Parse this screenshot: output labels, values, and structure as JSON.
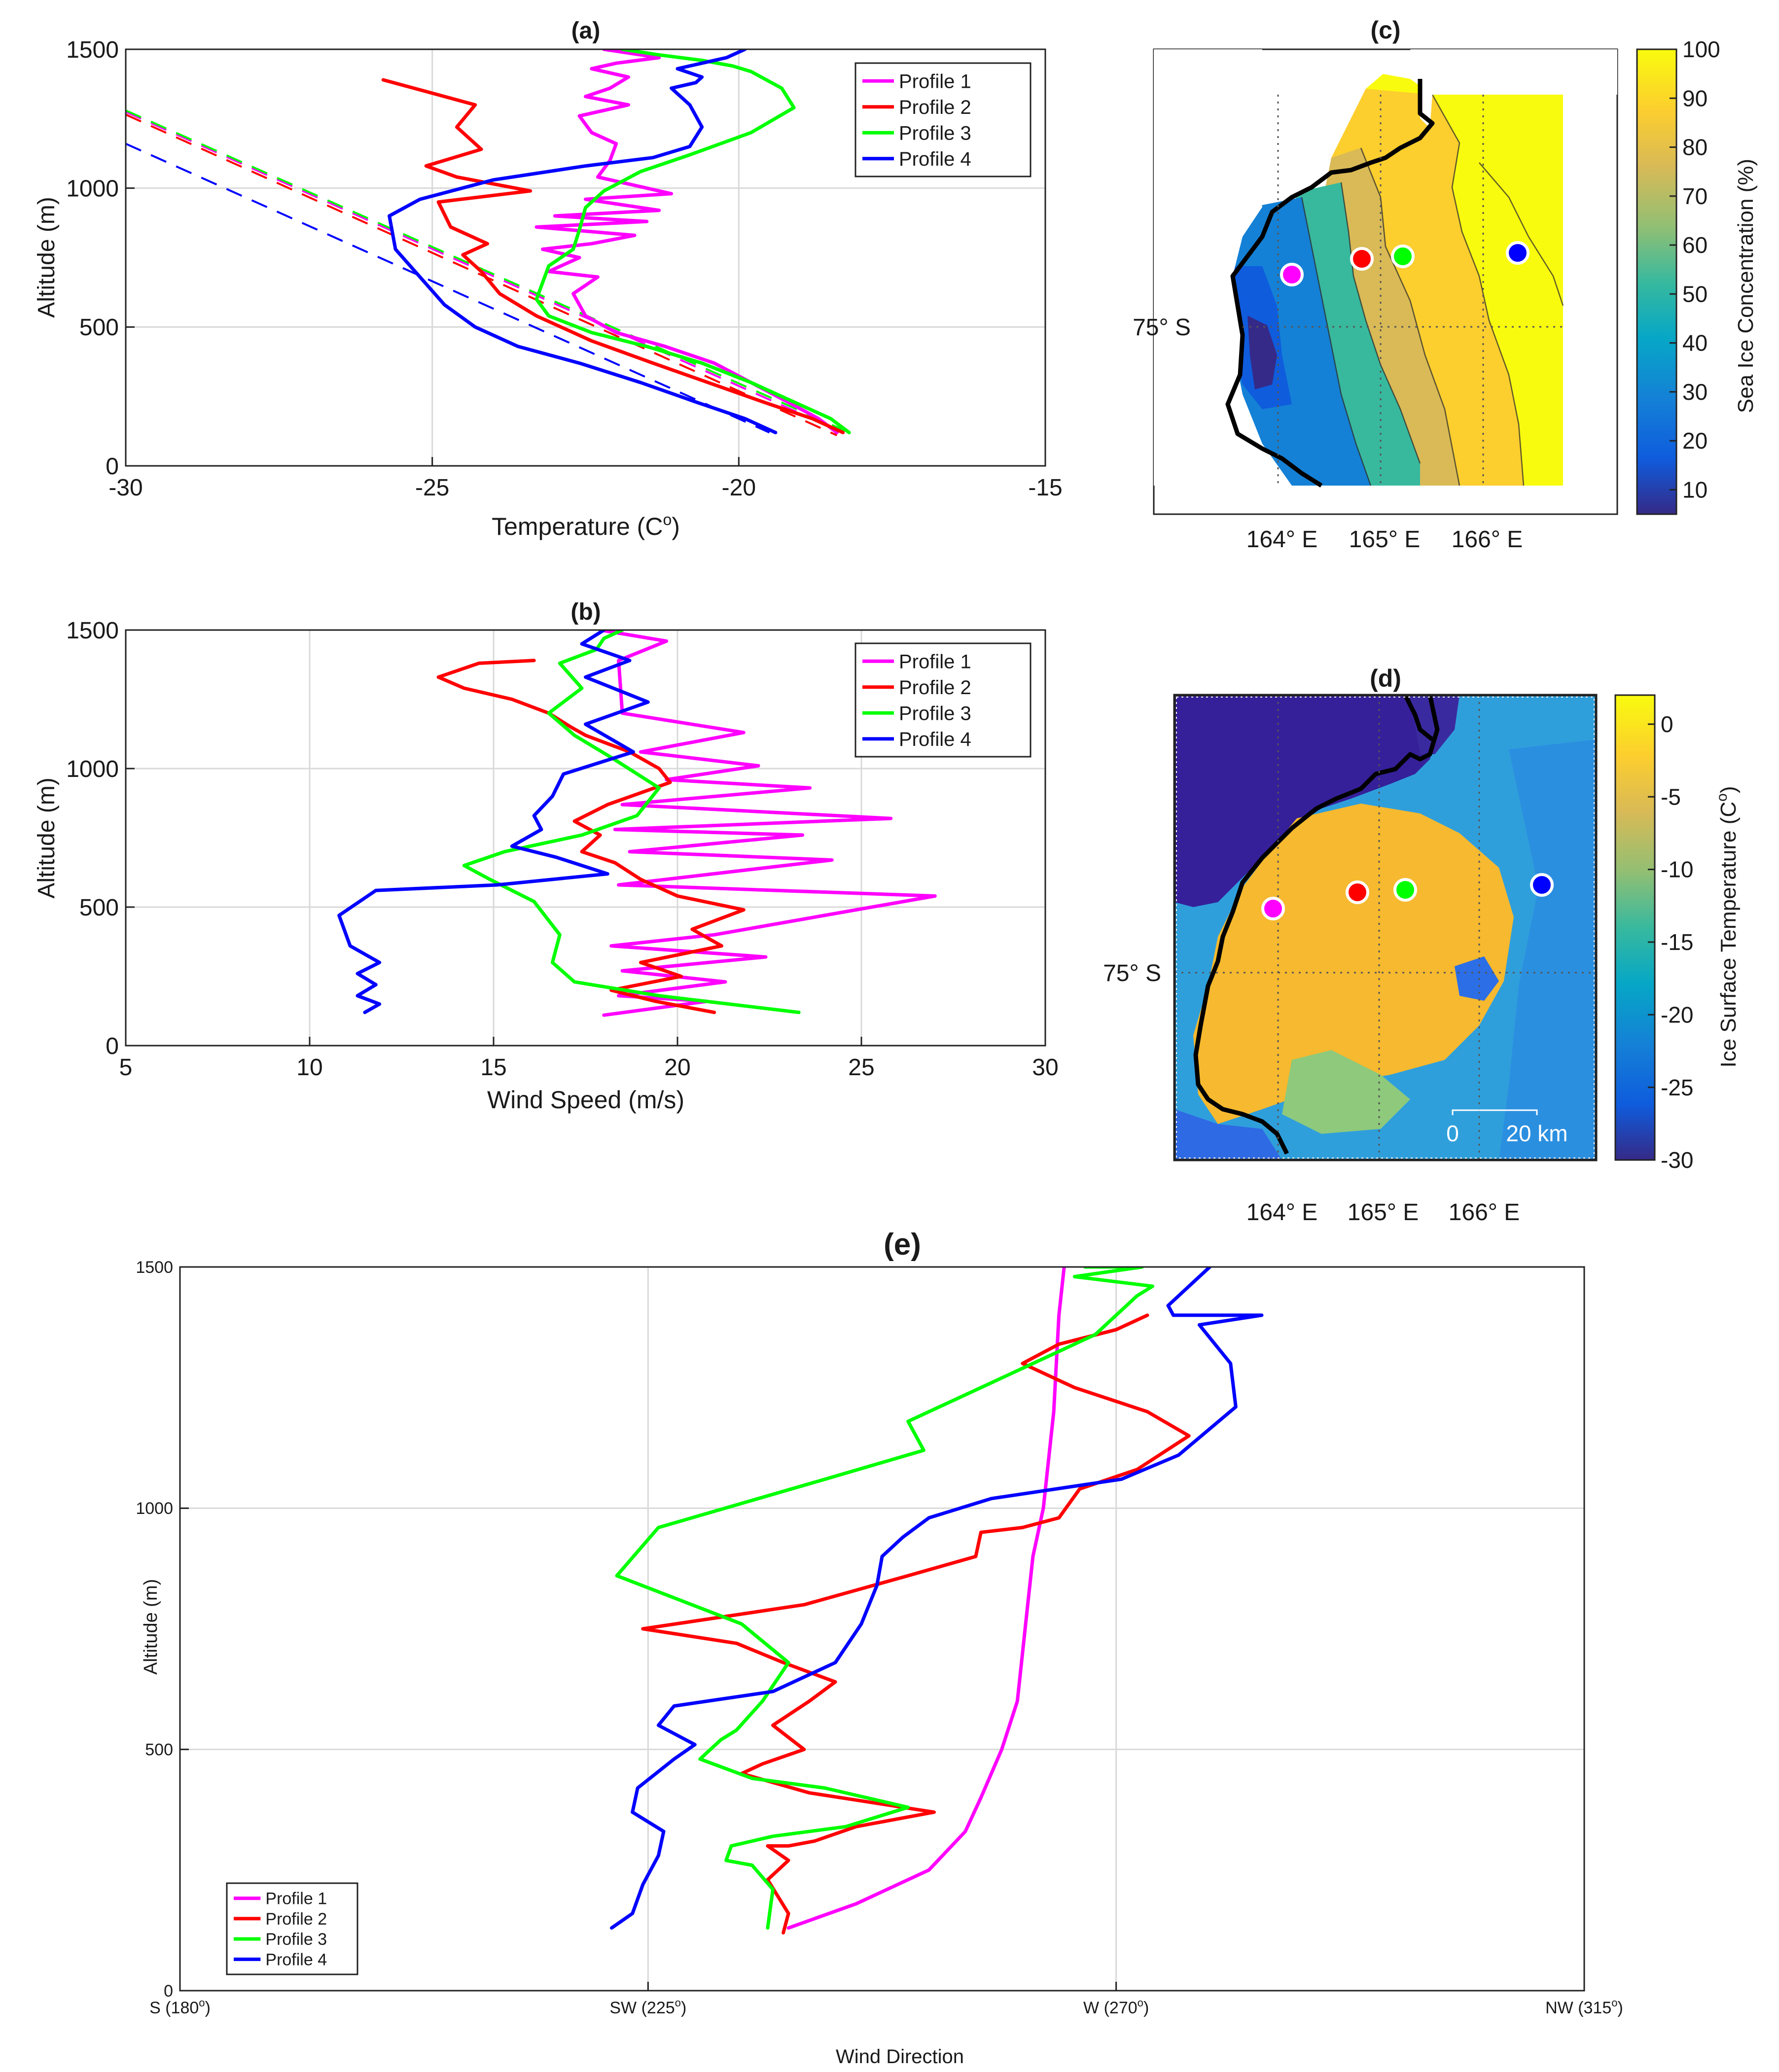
{
  "figure": {
    "series_colors": {
      "Profile 1": "#ff00ff",
      "Profile 2": "#ff0000",
      "Profile 3": "#00ff00",
      "Profile 4": "#0000ff"
    }
  },
  "chart_data": [
    {
      "id": "a",
      "type": "line",
      "title": "(a)",
      "xlabel": "Temperature (C",
      "xlabel_sup": "o",
      "xlabel_tail": ")",
      "ylabel": "Altitude (m)",
      "xlim": [
        -30,
        -15
      ],
      "ylim": [
        0,
        1500
      ],
      "xticks": [
        -30,
        -25,
        -20,
        -15
      ],
      "xtick_labels": [
        "-30",
        "-25",
        "-20",
        "-15"
      ],
      "yticks": [
        0,
        500,
        1000,
        1500
      ],
      "ytick_labels": [
        "0",
        "500",
        "1000",
        "1500"
      ],
      "legend": [
        "Profile 1",
        "Profile 2",
        "Profile 3",
        "Profile 4"
      ],
      "legend_position": "top-right",
      "series": [
        {
          "name": "Profile 1",
          "x": [
            -18.4,
            -18.7,
            -19.2,
            -19.8,
            -20.4,
            -21.2,
            -22.0,
            -22.5,
            -22.7,
            -22.3,
            -23.1,
            -22.6,
            -23.2,
            -22.4,
            -21.7,
            -23.3,
            -21.5,
            -23.0,
            -21.3,
            -22.5,
            -21.1,
            -22.3,
            -22.1,
            -22.0,
            -22.4,
            -22.6,
            -21.8,
            -22.5,
            -22.1,
            -21.8,
            -22.4,
            -22.0,
            -21.3,
            -22.2
          ],
          "y": [
            120,
            170,
            230,
            300,
            370,
            430,
            480,
            540,
            620,
            680,
            700,
            750,
            780,
            800,
            830,
            860,
            880,
            900,
            920,
            960,
            980,
            1040,
            1100,
            1160,
            1200,
            1260,
            1300,
            1330,
            1360,
            1400,
            1430,
            1450,
            1470,
            1500
          ]
        },
        {
          "name": "Profile 2",
          "x": [
            -18.3,
            -18.8,
            -19.6,
            -20.5,
            -21.4,
            -22.4,
            -23.3,
            -23.9,
            -24.2,
            -24.5,
            -24.1,
            -24.7,
            -24.9,
            -23.4,
            -24.6,
            -25.1,
            -24.2,
            -24.6,
            -24.3,
            -25.8
          ],
          "y": [
            120,
            170,
            230,
            300,
            370,
            450,
            540,
            620,
            700,
            760,
            800,
            860,
            950,
            990,
            1040,
            1080,
            1140,
            1220,
            1300,
            1390
          ]
        },
        {
          "name": "Profile 3",
          "x": [
            -18.2,
            -18.5,
            -19.1,
            -19.8,
            -20.6,
            -21.5,
            -22.4,
            -23.1,
            -23.3,
            -23.2,
            -23.1,
            -22.7,
            -22.6,
            -22.5,
            -22.2,
            -21.6,
            -20.8,
            -19.8,
            -19.1,
            -19.3,
            -19.8,
            -20.1,
            -20.6,
            -21.3,
            -21.9
          ],
          "y": [
            120,
            170,
            230,
            300,
            370,
            430,
            480,
            540,
            600,
            660,
            720,
            780,
            850,
            930,
            990,
            1060,
            1120,
            1200,
            1290,
            1360,
            1420,
            1440,
            1460,
            1480,
            1500
          ]
        },
        {
          "name": "Profile 4",
          "x": [
            -19.4,
            -19.9,
            -20.7,
            -21.6,
            -22.6,
            -23.6,
            -24.3,
            -24.8,
            -25.2,
            -25.6,
            -25.7,
            -25.2,
            -24.0,
            -22.5,
            -21.4,
            -20.8,
            -20.6,
            -20.8,
            -21.1,
            -20.7,
            -20.6,
            -21.0,
            -20.2,
            -19.9
          ],
          "y": [
            120,
            170,
            230,
            300,
            370,
            430,
            500,
            580,
            680,
            780,
            900,
            960,
            1030,
            1080,
            1110,
            1150,
            1220,
            1300,
            1360,
            1380,
            1400,
            1430,
            1470,
            1500
          ]
        }
      ],
      "dashed_lines": [
        {
          "name": "Profile 1",
          "x": [
            -30,
            -18.3
          ],
          "y": [
            1275,
            120
          ]
        },
        {
          "name": "Profile 2",
          "x": [
            -30,
            -18.4
          ],
          "y": [
            1265,
            110
          ]
        },
        {
          "name": "Profile 3",
          "x": [
            -30,
            -18.2
          ],
          "y": [
            1280,
            120
          ]
        },
        {
          "name": "Profile 4",
          "x": [
            -30,
            -19.5
          ],
          "y": [
            1160,
            120
          ]
        }
      ]
    },
    {
      "id": "b",
      "type": "line",
      "title": "(b)",
      "xlabel": "Wind Speed (m/s)",
      "ylabel": "Altitude (m)",
      "xlim": [
        5,
        30
      ],
      "ylim": [
        0,
        1500
      ],
      "xticks": [
        5,
        10,
        15,
        20,
        25,
        30
      ],
      "xtick_labels": [
        "5",
        "10",
        "15",
        "20",
        "25",
        "30"
      ],
      "yticks": [
        0,
        500,
        1000,
        1500
      ],
      "ytick_labels": [
        "0",
        "500",
        "1000",
        "1500"
      ],
      "legend": [
        "Profile 1",
        "Profile 2",
        "Profile 3",
        "Profile 4"
      ],
      "legend_position": "top-right",
      "series": [
        {
          "name": "Profile 1",
          "x": [
            18.0,
            20.8,
            18.4,
            21.3,
            18.5,
            22.4,
            18.2,
            21.0,
            27.0,
            18.4,
            24.2,
            18.7,
            23.4,
            18.3,
            25.8,
            18.5,
            23.6,
            19.7,
            22.2,
            19.0,
            21.8,
            18.5,
            18.4,
            19.7,
            17.9
          ],
          "y": [
            110,
            160,
            180,
            230,
            270,
            320,
            360,
            400,
            540,
            580,
            670,
            700,
            760,
            780,
            820,
            870,
            930,
            960,
            1010,
            1060,
            1130,
            1200,
            1390,
            1460,
            1500
          ]
        },
        {
          "name": "Profile 2",
          "x": [
            21.0,
            19.4,
            18.2,
            20.1,
            19.0,
            21.2,
            20.4,
            21.8,
            20.0,
            19.0,
            18.3,
            17.4,
            17.9,
            17.2,
            18.1,
            19.8,
            19.5,
            18.7,
            17.5,
            17.1,
            16.5,
            15.5,
            14.2,
            13.5,
            14.6,
            16.1
          ],
          "y": [
            120,
            160,
            200,
            250,
            300,
            360,
            420,
            490,
            540,
            600,
            660,
            700,
            760,
            810,
            870,
            950,
            1000,
            1060,
            1120,
            1150,
            1200,
            1250,
            1290,
            1330,
            1380,
            1390
          ]
        },
        {
          "name": "Profile 3",
          "x": [
            23.3,
            19.5,
            17.2,
            16.6,
            16.8,
            16.1,
            14.9,
            14.2,
            15.3,
            17.4,
            18.9,
            19.5,
            18.2,
            17.2,
            16.5,
            17.4,
            16.8,
            17.8,
            18.0,
            18.5
          ],
          "y": [
            120,
            180,
            230,
            300,
            400,
            520,
            600,
            650,
            700,
            760,
            830,
            930,
            1040,
            1120,
            1200,
            1290,
            1380,
            1430,
            1470,
            1500
          ]
        },
        {
          "name": "Profile 4",
          "x": [
            11.5,
            11.9,
            11.3,
            11.8,
            11.3,
            11.9,
            11.1,
            10.8,
            11.8,
            15.1,
            18.1,
            16.7,
            15.5,
            16.3,
            16.1,
            16.6,
            16.9,
            18.8,
            17.5,
            19.2,
            17.5,
            18.7,
            17.4,
            18.0
          ],
          "y": [
            120,
            150,
            180,
            220,
            260,
            300,
            360,
            470,
            560,
            580,
            620,
            680,
            720,
            780,
            830,
            900,
            980,
            1060,
            1160,
            1240,
            1330,
            1390,
            1450,
            1500
          ]
        }
      ]
    },
    {
      "id": "e",
      "type": "line",
      "title": "(e)",
      "xlabel": "Wind Direction",
      "ylabel": "Altitude (m)",
      "xlim": [
        180,
        315
      ],
      "ylim": [
        0,
        1500
      ],
      "xticks": [
        180,
        225,
        270,
        315
      ],
      "xtick_labels": [
        "S (180",
        "SW (225",
        "W (270",
        "NW (315"
      ],
      "xtick_sup": "o",
      "xtick_tail": ")",
      "yticks": [
        0,
        500,
        1000,
        1500
      ],
      "ytick_labels": [
        "0",
        "500",
        "1000",
        "1500"
      ],
      "legend": [
        "Profile 1",
        "Profile 2",
        "Profile 3",
        "Profile 4"
      ],
      "legend_position": "bottom-left",
      "series": [
        {
          "name": "Profile 1",
          "x": [
            238.5,
            245.0,
            252.0,
            255.5,
            257.0,
            259.0,
            260.5,
            261.0,
            261.5,
            262.0,
            263.0,
            264.0,
            264.5,
            265.0
          ],
          "y": [
            130,
            180,
            250,
            330,
            400,
            500,
            600,
            700,
            800,
            900,
            1000,
            1200,
            1400,
            1500
          ]
        },
        {
          "name": "Profile 2",
          "x": [
            238.0,
            238.5,
            236.5,
            238.5,
            236.5,
            238.5,
            241.0,
            245.0,
            252.5,
            240.5,
            234.0,
            236.0,
            240.0,
            237.0,
            240.5,
            243.0,
            238.0,
            233.5,
            224.5,
            240.0,
            250.0,
            256.5,
            257.0,
            261.0,
            264.5,
            266.5,
            272.0,
            277.0,
            273.0,
            266.0,
            261.0,
            264.5,
            270.0,
            273.0
          ],
          "y": [
            120,
            160,
            230,
            270,
            300,
            300,
            310,
            340,
            370,
            410,
            450,
            470,
            500,
            550,
            600,
            640,
            680,
            720,
            750,
            800,
            860,
            900,
            950,
            960,
            980,
            1040,
            1080,
            1150,
            1200,
            1250,
            1300,
            1340,
            1370,
            1400
          ]
        },
        {
          "name": "Profile 3",
          "x": [
            236.5,
            237.0,
            235.0,
            232.5,
            233.0,
            237.0,
            244.0,
            250.0,
            242.0,
            235.0,
            230.0,
            232.0,
            233.5,
            236.0,
            238.5,
            234.0,
            222.0,
            226.0,
            242.0,
            251.5,
            250.0,
            258.0,
            268.0,
            272.0,
            273.5,
            266.0,
            272.5,
            267.0
          ],
          "y": [
            130,
            210,
            260,
            270,
            300,
            320,
            340,
            380,
            420,
            440,
            480,
            520,
            540,
            600,
            680,
            760,
            860,
            960,
            1060,
            1120,
            1180,
            1260,
            1360,
            1440,
            1460,
            1480,
            1500,
            1500
          ]
        },
        {
          "name": "Profile 4",
          "x": [
            221.5,
            223.5,
            224.5,
            226.0,
            226.5,
            223.5,
            224.0,
            227.5,
            229.5,
            226.0,
            227.5,
            237.0,
            243.0,
            245.5,
            247.0,
            247.5,
            249.5,
            252.0,
            258.0,
            270.5,
            276.0,
            281.5,
            281.0,
            278.0,
            284.0,
            275.5,
            275.0,
            279.0
          ],
          "y": [
            130,
            160,
            220,
            280,
            330,
            370,
            420,
            480,
            510,
            550,
            590,
            620,
            680,
            760,
            840,
            900,
            940,
            980,
            1020,
            1060,
            1110,
            1210,
            1300,
            1380,
            1400,
            1400,
            1420,
            1500
          ]
        }
      ]
    }
  ],
  "map_c": {
    "title": "(c)",
    "colorbar_label": "Sea Ice Concentration (%)",
    "colorbar_ticks": [
      "100",
      "90",
      "80",
      "70",
      "60",
      "50",
      "40",
      "30",
      "20",
      "10"
    ],
    "lon_labels": [
      "164° E",
      "165° E",
      "166° E"
    ],
    "lat_label": "75° S",
    "markers": [
      "Profile 1",
      "Profile 2",
      "Profile 3",
      "Profile 4"
    ]
  },
  "map_d": {
    "title": "(d)",
    "colorbar_label": "Ice Surface Temperature (C",
    "colorbar_label_sup": "o",
    "colorbar_label_tail": ")",
    "colorbar_ticks": [
      "0",
      "-5",
      "-10",
      "-15",
      "-20",
      "-25",
      "-30"
    ],
    "lon_labels": [
      "164° E",
      "165° E",
      "166° E"
    ],
    "lat_label": "75° S",
    "scalebar_labels": [
      "0",
      "20 km"
    ],
    "markers": [
      "Profile 1",
      "Profile 2",
      "Profile 3",
      "Profile 4"
    ]
  }
}
